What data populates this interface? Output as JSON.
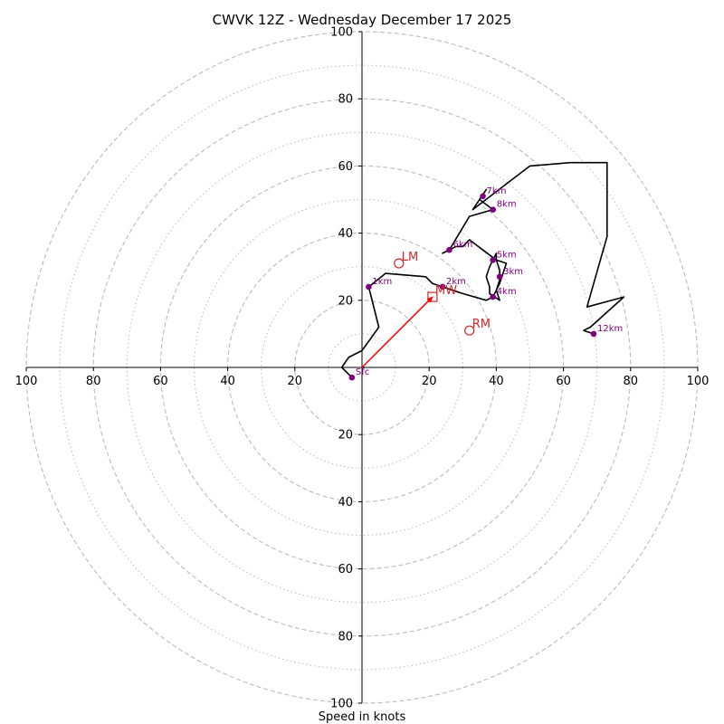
{
  "chart_data": {
    "type": "hodograph",
    "title": "CWVK 12Z - Wednesday December 17 2025",
    "xlabel": "Speed in knots",
    "units": "knots",
    "range": [
      -100,
      100
    ],
    "ring_major": [
      20,
      40,
      60,
      80,
      100
    ],
    "ring_minor": [
      10,
      30,
      50,
      70,
      90
    ],
    "x_ticks": [
      {
        "v": -100,
        "label": "100"
      },
      {
        "v": -80,
        "label": "80"
      },
      {
        "v": -60,
        "label": "60"
      },
      {
        "v": -40,
        "label": "40"
      },
      {
        "v": -20,
        "label": "20"
      },
      {
        "v": 20,
        "label": "20"
      },
      {
        "v": 40,
        "label": "40"
      },
      {
        "v": 60,
        "label": "60"
      },
      {
        "v": 80,
        "label": "80"
      },
      {
        "v": 100,
        "label": "100"
      }
    ],
    "y_ticks": [
      {
        "v": 100,
        "label": "100"
      },
      {
        "v": 80,
        "label": "80"
      },
      {
        "v": 60,
        "label": "60"
      },
      {
        "v": 40,
        "label": "40"
      },
      {
        "v": 20,
        "label": "20"
      },
      {
        "v": -20,
        "label": "20"
      },
      {
        "v": -40,
        "label": "40"
      },
      {
        "v": -60,
        "label": "60"
      },
      {
        "v": -80,
        "label": "80"
      },
      {
        "v": -100,
        "label": "100"
      }
    ],
    "hodograph_line": [
      [
        -3,
        -3
      ],
      [
        -6,
        0
      ],
      [
        -4,
        3
      ],
      [
        0,
        5
      ],
      [
        5,
        12
      ],
      [
        2,
        24
      ],
      [
        7,
        28
      ],
      [
        19,
        27
      ],
      [
        21,
        25
      ],
      [
        24,
        24
      ],
      [
        30,
        22
      ],
      [
        37,
        20
      ],
      [
        39,
        21
      ],
      [
        40,
        23
      ],
      [
        41,
        26
      ],
      [
        41,
        29
      ],
      [
        40,
        32
      ],
      [
        40,
        34
      ],
      [
        38,
        30
      ],
      [
        37,
        27
      ],
      [
        38,
        24
      ],
      [
        38,
        22
      ],
      [
        41,
        20
      ],
      [
        40,
        23
      ],
      [
        41,
        25
      ],
      [
        42,
        28
      ],
      [
        43,
        31
      ],
      [
        40,
        32
      ],
      [
        32,
        38
      ],
      [
        30,
        36
      ],
      [
        28,
        36
      ],
      [
        24,
        34
      ],
      [
        26,
        35
      ],
      [
        32,
        45
      ],
      [
        39,
        47
      ],
      [
        35,
        50
      ],
      [
        37,
        53
      ],
      [
        33,
        47
      ],
      [
        50,
        60
      ],
      [
        62,
        61
      ],
      [
        73,
        61
      ],
      [
        73,
        39
      ],
      [
        67,
        18
      ],
      [
        78,
        21
      ],
      [
        68,
        12
      ],
      [
        66,
        11
      ],
      [
        69,
        10
      ]
    ],
    "height_markers": [
      {
        "label": "Sfc",
        "u": -3,
        "v": -3
      },
      {
        "label": "1km",
        "u": 2,
        "v": 24
      },
      {
        "label": "2km",
        "u": 24,
        "v": 24
      },
      {
        "label": "3km",
        "u": 41,
        "v": 27
      },
      {
        "label": "4km",
        "u": 39,
        "v": 21
      },
      {
        "label": "5km",
        "u": 39,
        "v": 32
      },
      {
        "label": "6km",
        "u": 26,
        "v": 35
      },
      {
        "label": "7km",
        "u": 36,
        "v": 51
      },
      {
        "label": "8km",
        "u": 39,
        "v": 47
      },
      {
        "label": "12km",
        "u": 69,
        "v": 10
      }
    ],
    "motion_markers": [
      {
        "label": "LM",
        "u": 11,
        "v": 31,
        "shape": "circle"
      },
      {
        "label": "MW",
        "u": 21,
        "v": 21,
        "shape": "square"
      },
      {
        "label": "RM",
        "u": 32,
        "v": 11,
        "shape": "circle"
      }
    ],
    "storm_vector": {
      "u": 21,
      "v": 21
    },
    "colors": {
      "grid": "#bbbbbb",
      "line": "#000000",
      "marker": "#800080",
      "motion": "#d62728",
      "vector": "#ff0000"
    }
  }
}
